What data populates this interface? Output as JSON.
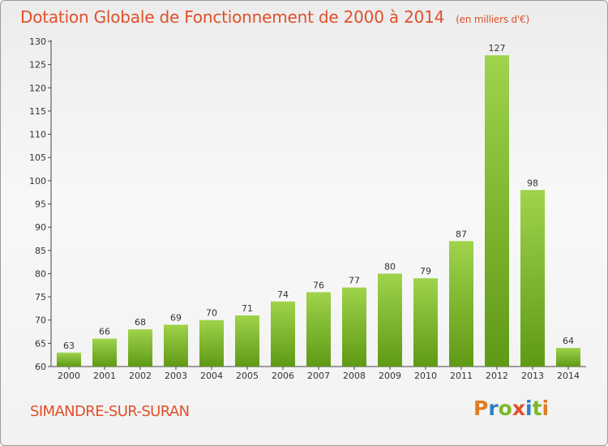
{
  "header": {
    "title": "Dotation Globale de Fonctionnement de 2000 à 2014",
    "subtitle": "(en milliers d'€)"
  },
  "footer": {
    "commune": "SIMANDRE-SUR-SURAN",
    "logo": "Proxiti"
  },
  "colors": {
    "title": "#e0502a",
    "bar_light": "#9fd34b",
    "bar_dark": "#5f9a15",
    "logo_letters": [
      "#e07b22",
      "#2f7fc4",
      "#7db828",
      "#e0502a",
      "#2f7fc4",
      "#7db828",
      "#e07b22"
    ]
  },
  "chart_data": {
    "type": "bar",
    "title": "Dotation Globale de Fonctionnement de 2000 à 2014",
    "subtitle": "(en milliers d'€)",
    "xlabel": "",
    "ylabel": "",
    "categories": [
      "2000",
      "2001",
      "2002",
      "2003",
      "2004",
      "2005",
      "2006",
      "2007",
      "2008",
      "2009",
      "2010",
      "2011",
      "2012",
      "2013",
      "2014"
    ],
    "values": [
      63,
      66,
      68,
      69,
      70,
      71,
      74,
      76,
      77,
      80,
      79,
      87,
      127,
      98,
      64
    ],
    "ylim": [
      60,
      130
    ],
    "yticks": [
      60,
      65,
      70,
      75,
      80,
      85,
      90,
      95,
      100,
      105,
      110,
      115,
      120,
      125,
      130
    ],
    "grid": false,
    "legend": "none"
  }
}
